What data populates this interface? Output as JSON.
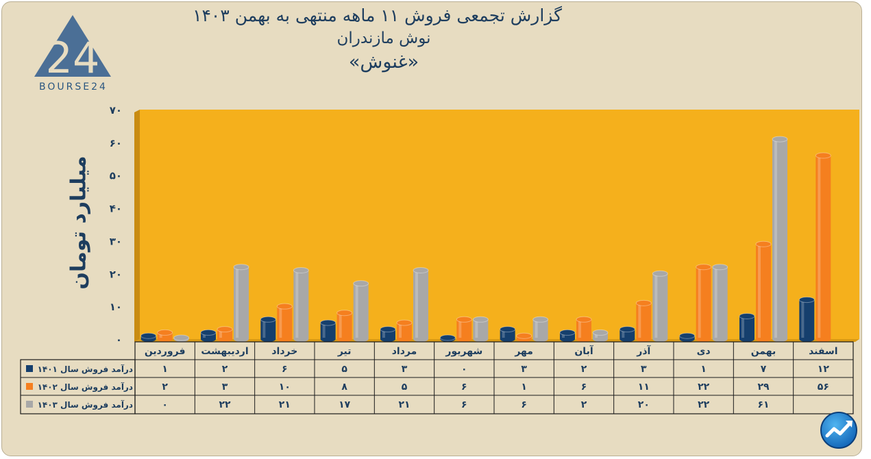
{
  "header": {
    "title_line1": "گزارش تجمعی فروش ۱۱ ماهه منتهی به بهمن ۱۴۰۳",
    "title_line2": "نوش مازندران",
    "title_line3": "«غنوش»"
  },
  "logo": {
    "word": "BOURSE24",
    "mark": "24",
    "icon": "bourse24-logo-icon"
  },
  "corner_icon": "trend-arrow-icon",
  "colors": {
    "frame_bg": "#e7dcc1",
    "plot_bg": "#f5b01c",
    "series": [
      "#153f6d",
      "#f57f1f",
      "#a8a8a8"
    ],
    "text": "#1d3d5e"
  },
  "chart_data": {
    "type": "bar",
    "ylabel": "میلیارد تومان",
    "ylim": [
      0,
      70
    ],
    "yticks": [
      "۰",
      "۱۰",
      "۲۰",
      "۳۰",
      "۴۰",
      "۵۰",
      "۶۰",
      "۷۰"
    ],
    "ytick_values": [
      0,
      10,
      20,
      30,
      40,
      50,
      60,
      70
    ],
    "categories": [
      "فروردین",
      "اردیبهشت",
      "خرداد",
      "تیر",
      "مرداد",
      "شهریور",
      "مهر",
      "آبان",
      "آذر",
      "دی",
      "بهمن",
      "اسفند"
    ],
    "series": [
      {
        "name": "درآمد فروش سال ۱۴۰۱",
        "values": [
          1,
          2,
          6,
          5,
          3,
          0,
          3,
          2,
          3,
          1,
          7,
          12
        ],
        "labels": [
          "۱",
          "۲",
          "۶",
          "۵",
          "۳",
          "۰",
          "۳",
          "۲",
          "۳",
          "۱",
          "۷",
          "۱۲"
        ]
      },
      {
        "name": "درآمد فروش سال ۱۴۰۲",
        "values": [
          2,
          3,
          10,
          8,
          5,
          6,
          1,
          6,
          11,
          22,
          29,
          56
        ],
        "labels": [
          "۲",
          "۳",
          "۱۰",
          "۸",
          "۵",
          "۶",
          "۱",
          "۶",
          "۱۱",
          "۲۲",
          "۲۹",
          "۵۶"
        ]
      },
      {
        "name": "درآمد فروش سال ۱۴۰۳",
        "values": [
          0,
          22,
          21,
          17,
          21,
          6,
          6,
          2,
          20,
          22,
          61,
          null
        ],
        "labels": [
          "۰",
          "۲۲",
          "۲۱",
          "۱۷",
          "۲۱",
          "۶",
          "۶",
          "۲",
          "۲۰",
          "۲۲",
          "۶۱",
          ""
        ]
      }
    ],
    "grid": false,
    "legend": "data-table-below"
  }
}
